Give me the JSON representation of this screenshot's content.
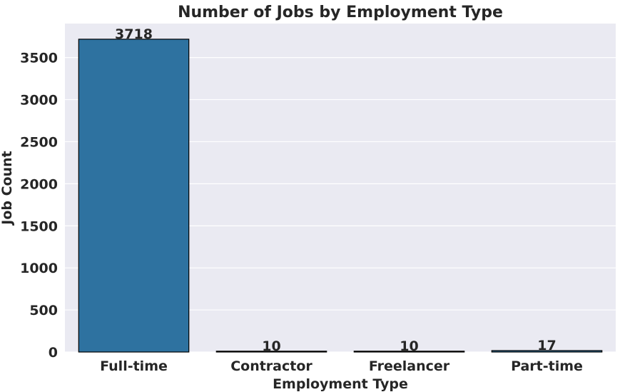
{
  "chart_data": {
    "type": "bar",
    "title": "Number of Jobs by Employment Type",
    "xlabel": "Employment Type",
    "ylabel": "Job Count",
    "categories": [
      "Full-time",
      "Contractor",
      "Freelancer",
      "Part-time"
    ],
    "values": [
      3718,
      10,
      10,
      17
    ],
    "data_labels": [
      "3718",
      "10",
      "10",
      "17"
    ],
    "yticks": [
      0,
      500,
      1000,
      1500,
      2000,
      2500,
      3000,
      3500
    ],
    "ylim": [
      0,
      3903.9
    ],
    "grid": true,
    "legend": "none",
    "colors": {
      "plot_background": "#EAEAF2",
      "grid": "#FFFFFF",
      "bar": "#2E72A0",
      "bar_edge": "#000000",
      "text": "#262626"
    }
  }
}
